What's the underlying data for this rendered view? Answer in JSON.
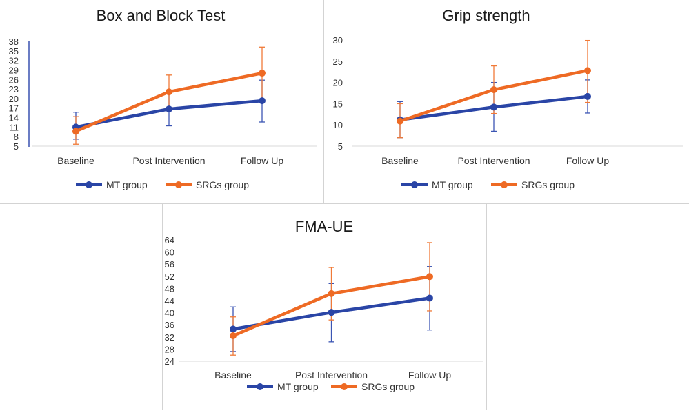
{
  "colors": {
    "mt": "#2a45a6",
    "srg": "#ee6a24",
    "err_mt": "#3b55b3",
    "err_srg": "#f07a38",
    "axis": "#d9d9d9",
    "yaxis_line": "#3a52b0"
  },
  "categories": [
    "Baseline",
    "Post Intervention",
    "Follow Up"
  ],
  "legend": [
    "MT group",
    "SRGs group"
  ],
  "chart_data": [
    {
      "type": "line",
      "title": "Box and Block Test",
      "categories": [
        "Baseline",
        "Post Intervention",
        "Follow Up"
      ],
      "yticks": [
        "5",
        "8",
        "11",
        "14",
        "17",
        "20",
        "23",
        "26",
        "29",
        "32",
        "35",
        "38"
      ],
      "ylim": [
        5,
        38
      ],
      "series": [
        {
          "name": "MT group",
          "values": [
            11.0,
            16.7,
            19.3
          ],
          "err_low": [
            7.2,
            11.4,
            12.6
          ],
          "err_high": [
            15.7,
            22.3,
            25.8
          ]
        },
        {
          "name": "SRGs group",
          "values": [
            9.7,
            22.1,
            28.0
          ],
          "err_low": [
            5.6,
            16.7,
            19.8
          ],
          "err_high": [
            14.3,
            27.4,
            36.2
          ]
        }
      ]
    },
    {
      "type": "line",
      "title": "Grip strength",
      "categories": [
        "Baseline",
        "Post Intervention",
        "Follow Up"
      ],
      "yticks": [
        "5",
        "10",
        "15",
        "20",
        "25",
        "30"
      ],
      "ylim": [
        5,
        30
      ],
      "series": [
        {
          "name": "MT group",
          "values": [
            11.2,
            14.2,
            16.7
          ],
          "err_low": [
            7.0,
            8.5,
            12.8
          ],
          "err_high": [
            15.5,
            20.0,
            20.6
          ]
        },
        {
          "name": "SRGs group",
          "values": [
            10.9,
            18.3,
            22.8
          ],
          "err_low": [
            7.0,
            12.7,
            15.3
          ],
          "err_high": [
            15.0,
            23.9,
            29.9
          ]
        }
      ]
    },
    {
      "type": "line",
      "title": "FMA-UE",
      "categories": [
        "Baseline",
        "Post Intervention",
        "Follow Up"
      ],
      "yticks": [
        "24",
        "28",
        "32",
        "36",
        "40",
        "44",
        "48",
        "52",
        "56",
        "60",
        "64"
      ],
      "ylim": [
        24,
        64
      ],
      "series": [
        {
          "name": "MT group",
          "values": [
            34.6,
            40.1,
            44.8
          ],
          "err_low": [
            27.2,
            30.4,
            34.3
          ],
          "err_high": [
            41.9,
            49.6,
            55.2
          ]
        },
        {
          "name": "SRGs group",
          "values": [
            32.4,
            46.3,
            51.9
          ],
          "err_low": [
            26.0,
            37.6,
            40.6
          ],
          "err_high": [
            38.6,
            54.9,
            63.1
          ]
        }
      ]
    }
  ]
}
